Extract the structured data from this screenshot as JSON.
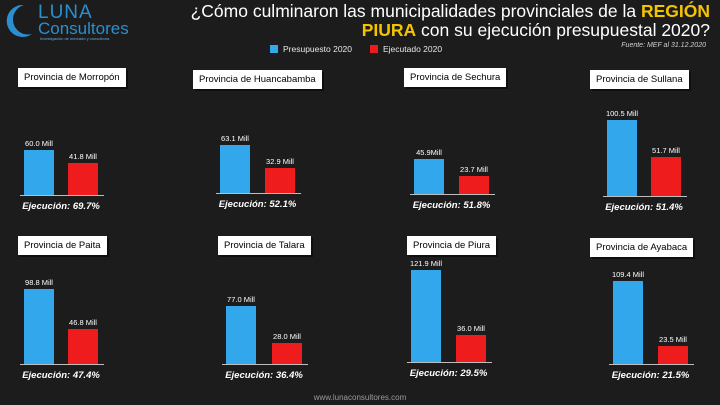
{
  "brand": {
    "name_line1": "LUNA",
    "name_line2": "Consultores",
    "tagline": "Investigación de mercado y consultoría"
  },
  "header": {
    "title_pre": "¿Cómo culminaron las municipalidades provinciales de la ",
    "title_highlight": "REGIÓN PIURA",
    "title_post": " con su ejecución presupuestal 2020?",
    "source": "Fuente: MEF al 31.12.2020"
  },
  "legend": [
    {
      "label": "Presupuesto 2020",
      "color": "#33a7ec"
    },
    {
      "label": "Ejecutado 2020",
      "color": "#ee1c1c"
    }
  ],
  "footer": {
    "url": "www.lunaconsultores.com"
  },
  "chart_data": [
    {
      "type": "bar",
      "title": "Provincia de Morropón",
      "series": [
        {
          "name": "Presupuesto 2020",
          "value": 60.0,
          "label": "60.0 Mill"
        },
        {
          "name": "Ejecutado 2020",
          "value": 41.8,
          "label": "41.8 Mill"
        }
      ],
      "execution": "Ejecución: 69.7%"
    },
    {
      "type": "bar",
      "title": "Provincia de Huancabamba",
      "series": [
        {
          "name": "Presupuesto 2020",
          "value": 63.1,
          "label": "63.1 Mill"
        },
        {
          "name": "Ejecutado 2020",
          "value": 32.9,
          "label": "32.9 Mill"
        }
      ],
      "execution": "Ejecución: 52.1%"
    },
    {
      "type": "bar",
      "title": "Provincia de Sechura",
      "series": [
        {
          "name": "Presupuesto 2020",
          "value": 45.9,
          "label": "45.9Mill"
        },
        {
          "name": "Ejecutado 2020",
          "value": 23.7,
          "label": "23.7 Mill"
        }
      ],
      "execution": "Ejecución: 51.8%"
    },
    {
      "type": "bar",
      "title": "Provincia de Sullana",
      "series": [
        {
          "name": "Presupuesto 2020",
          "value": 100.5,
          "label": "100.5 Mill"
        },
        {
          "name": "Ejecutado 2020",
          "value": 51.7,
          "label": "51.7 Mill"
        }
      ],
      "execution": "Ejecución: 51.4%"
    },
    {
      "type": "bar",
      "title": "Provincia de Paita",
      "series": [
        {
          "name": "Presupuesto 2020",
          "value": 98.8,
          "label": "98.8 Mill"
        },
        {
          "name": "Ejecutado 2020",
          "value": 46.8,
          "label": "46.8 Mill"
        }
      ],
      "execution": "Ejecución: 47.4%"
    },
    {
      "type": "bar",
      "title": "Provincia de Talara",
      "series": [
        {
          "name": "Presupuesto 2020",
          "value": 77.0,
          "label": "77.0 Mill"
        },
        {
          "name": "Ejecutado 2020",
          "value": 28.0,
          "label": "28.0 Mill"
        }
      ],
      "execution": "Ejecución: 36.4%"
    },
    {
      "type": "bar",
      "title": "Provincia de Piura",
      "series": [
        {
          "name": "Presupuesto 2020",
          "value": 121.9,
          "label": "121.9 Mill"
        },
        {
          "name": "Ejecutado 2020",
          "value": 36.0,
          "label": "36.0 Mill"
        }
      ],
      "execution": "Ejecución: 29.5%"
    },
    {
      "type": "bar",
      "title": "Provincia de Ayabaca",
      "series": [
        {
          "name": "Presupuesto 2020",
          "value": 109.4,
          "label": "109.4 Mill"
        },
        {
          "name": "Ejecutado 2020",
          "value": 23.5,
          "label": "23.5 Mill"
        }
      ],
      "execution": "Ejecución: 21.5%"
    }
  ]
}
